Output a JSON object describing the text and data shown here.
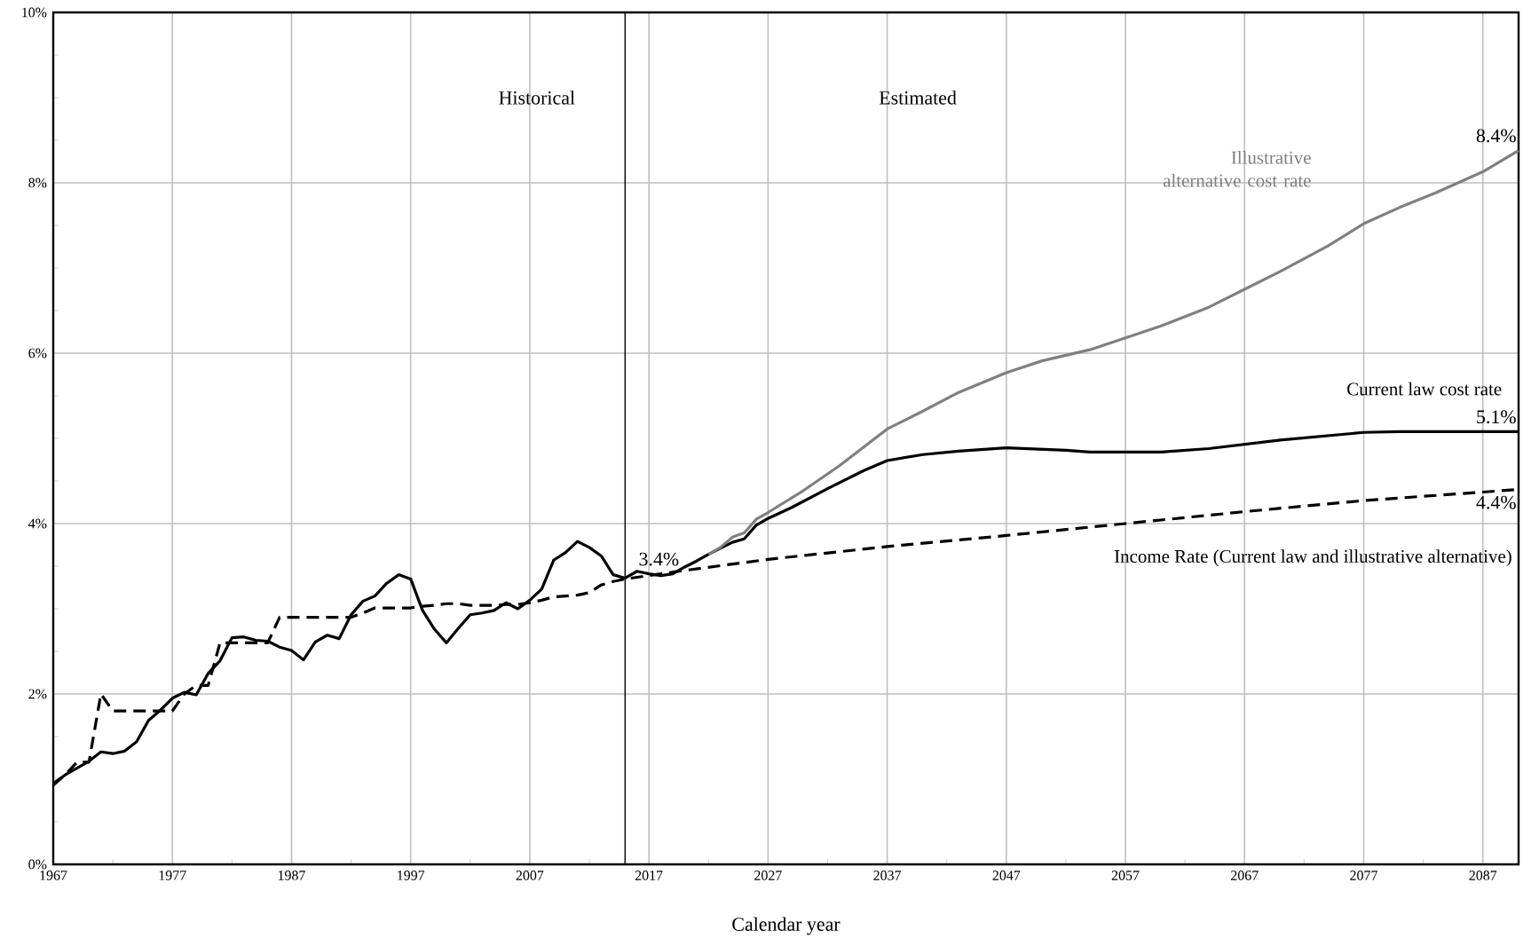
{
  "chart_data": {
    "type": "line",
    "xlabel": "Calendar year",
    "xlim": [
      1967,
      2090
    ],
    "ylim": [
      0,
      10
    ],
    "xticks": [
      1967,
      1977,
      1987,
      1997,
      2007,
      2017,
      2027,
      2037,
      2047,
      2057,
      2067,
      2077,
      2087
    ],
    "yticks": [
      {
        "value": 0,
        "label": "0%"
      },
      {
        "value": 2,
        "label": "2%"
      },
      {
        "value": 4,
        "label": "4%"
      },
      {
        "value": 6,
        "label": "6%"
      },
      {
        "value": 8,
        "label": "8%"
      },
      {
        "value": 10,
        "label": "10%"
      }
    ],
    "grid": true,
    "marker": "none",
    "series": [
      {
        "name": "Current law cost rate",
        "color": "#000000",
        "line_style": "solid",
        "x": [
          1967,
          1968,
          1969,
          1970,
          1971,
          1972,
          1973,
          1974,
          1975,
          1976,
          1977,
          1978,
          1979,
          1980,
          1981,
          1982,
          1983,
          1984,
          1985,
          1986,
          1987,
          1988,
          1989,
          1990,
          1991,
          1992,
          1993,
          1994,
          1995,
          1996,
          1997,
          1998,
          1999,
          2000,
          2001,
          2002,
          2003,
          2004,
          2005,
          2006,
          2007,
          2008,
          2009,
          2010,
          2011,
          2012,
          2013,
          2014,
          2015,
          2016,
          2017,
          2018,
          2019,
          2020,
          2021,
          2022,
          2023,
          2024,
          2025,
          2026,
          2027,
          2029,
          2032,
          2035,
          2037,
          2040,
          2043,
          2047,
          2052,
          2054,
          2060,
          2064,
          2070,
          2077,
          2080,
          2087,
          2090
        ],
        "values": [
          0.95,
          1.05,
          1.13,
          1.21,
          1.32,
          1.3,
          1.33,
          1.44,
          1.69,
          1.81,
          1.95,
          2.02,
          1.99,
          2.24,
          2.39,
          2.66,
          2.67,
          2.63,
          2.62,
          2.55,
          2.51,
          2.4,
          2.61,
          2.69,
          2.65,
          2.93,
          3.09,
          3.15,
          3.3,
          3.4,
          3.35,
          2.98,
          2.76,
          2.6,
          2.77,
          2.93,
          2.95,
          2.98,
          3.07,
          3.0,
          3.1,
          3.23,
          3.57,
          3.66,
          3.79,
          3.72,
          3.62,
          3.4,
          3.36,
          3.44,
          3.41,
          3.39,
          3.41,
          3.49,
          3.56,
          3.64,
          3.71,
          3.78,
          3.82,
          3.98,
          4.06,
          4.19,
          4.41,
          4.62,
          4.74,
          4.81,
          4.85,
          4.89,
          4.86,
          4.84,
          4.84,
          4.88,
          4.98,
          5.07,
          5.08,
          5.08,
          5.08
        ]
      },
      {
        "name": "Illustrative alternative cost rate",
        "color": "#808080",
        "line_style": "solid",
        "x": [
          2022,
          2023,
          2024,
          2025,
          2026,
          2027,
          2030,
          2033,
          2037,
          2040,
          2043,
          2047,
          2050,
          2054,
          2057,
          2060,
          2064,
          2067,
          2070,
          2074,
          2077,
          2080,
          2083,
          2087,
          2090
        ],
        "values": [
          3.64,
          3.72,
          3.84,
          3.89,
          4.05,
          4.13,
          4.39,
          4.68,
          5.11,
          5.32,
          5.54,
          5.77,
          5.91,
          6.04,
          6.18,
          6.32,
          6.54,
          6.75,
          6.96,
          7.26,
          7.52,
          7.71,
          7.88,
          8.13,
          8.38
        ]
      },
      {
        "name": "Income Rate (Current law and illustrative alternative)",
        "color": "#000000",
        "line_style": "dashed",
        "x": [
          1967,
          1968,
          1969,
          1970,
          1971,
          1972,
          1973,
          1974,
          1975,
          1976,
          1977,
          1978,
          1979,
          1980,
          1981,
          1982,
          1983,
          1984,
          1985,
          1986,
          1987,
          1988,
          1989,
          1990,
          1991,
          1992,
          1993,
          1994,
          1995,
          1996,
          1997,
          1998,
          1999,
          2000,
          2001,
          2002,
          2003,
          2004,
          2005,
          2006,
          2007,
          2008,
          2009,
          2010,
          2011,
          2012,
          2013,
          2014,
          2015,
          2016,
          2020,
          2027,
          2037,
          2047,
          2057,
          2067,
          2077,
          2087,
          2090
        ],
        "values": [
          0.93,
          1.05,
          1.2,
          1.2,
          2.0,
          1.8,
          1.8,
          1.8,
          1.8,
          1.8,
          1.8,
          2.0,
          2.1,
          2.1,
          2.6,
          2.6,
          2.6,
          2.6,
          2.6,
          2.9,
          2.9,
          2.9,
          2.9,
          2.9,
          2.9,
          2.9,
          2.95,
          3.01,
          3.01,
          3.01,
          3.01,
          3.03,
          3.04,
          3.06,
          3.06,
          3.04,
          3.04,
          3.04,
          3.05,
          3.05,
          3.07,
          3.1,
          3.14,
          3.15,
          3.16,
          3.19,
          3.28,
          3.32,
          3.35,
          3.37,
          3.45,
          3.58,
          3.73,
          3.86,
          4.0,
          4.14,
          4.27,
          4.37,
          4.4
        ]
      }
    ],
    "ref_lines": [
      {
        "axis": "x",
        "value": 2015,
        "color": "#000000"
      }
    ],
    "annotations": [
      "Historical",
      "Estimated",
      "3.4%",
      "8.4%",
      "5.1%",
      "4.4%"
    ]
  }
}
